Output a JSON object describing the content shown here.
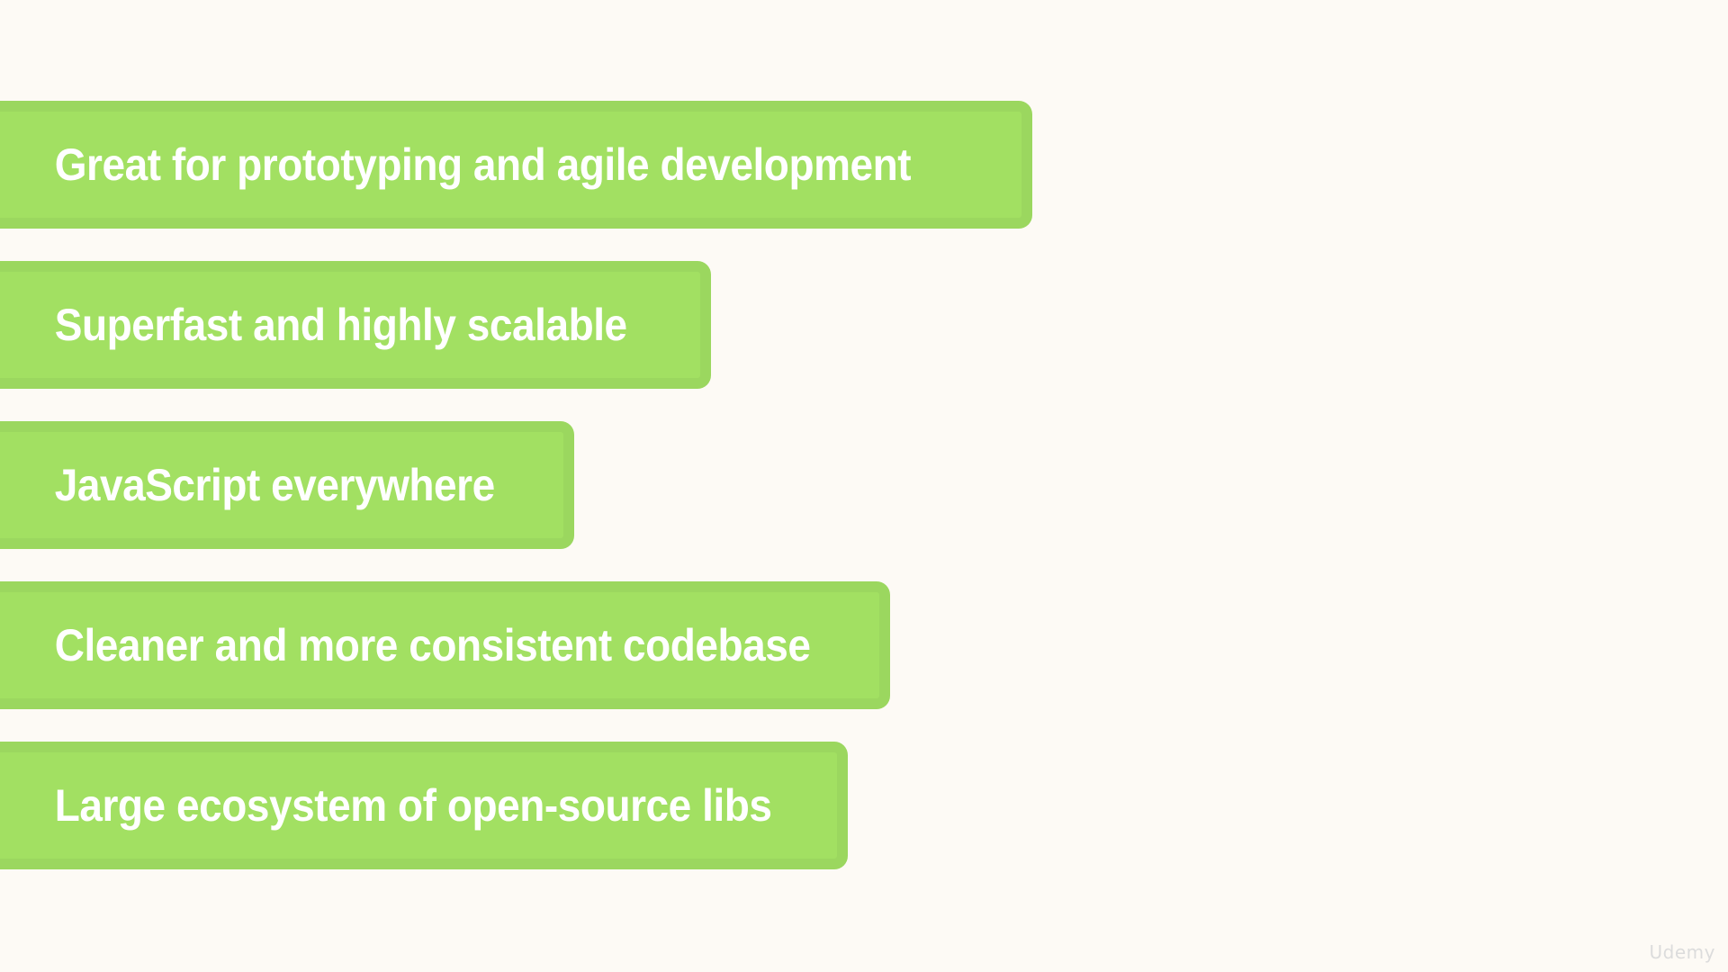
{
  "slide": {
    "points": [
      {
        "label": "Great for prototyping and agile development"
      },
      {
        "label": "Superfast and highly scalable"
      },
      {
        "label": "JavaScript everywhere"
      },
      {
        "label": "Cleaner and more consistent codebase"
      },
      {
        "label": "Large ecosystem of open-source libs"
      }
    ],
    "watermark": "Udemy"
  },
  "colors": {
    "background": "#fdfaf5",
    "banner_fill": "#a2e062",
    "banner_border": "#9bd75f",
    "text": "#ffffff"
  }
}
